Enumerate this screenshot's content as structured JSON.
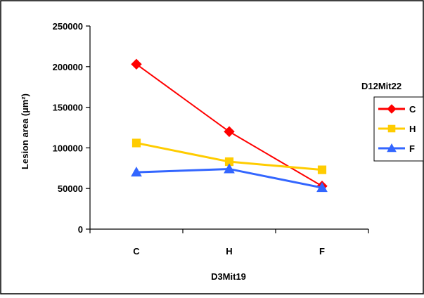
{
  "chart_data": {
    "type": "line",
    "title": "",
    "xlabel": "D3Mit19",
    "ylabel": "Lesion area (µm²)",
    "categories": [
      "C",
      "H",
      "F"
    ],
    "ylim": [
      0,
      250000
    ],
    "yticks": [
      "0",
      "50000",
      "100000",
      "150000",
      "200000",
      "250000"
    ],
    "yticks_values": [
      0,
      50000,
      100000,
      150000,
      200000,
      250000
    ],
    "grid": false,
    "legend": {
      "title": "D12Mit22",
      "placement": "right"
    },
    "series": [
      {
        "name": "C",
        "color": "#ff0000",
        "marker": "diamond-icon",
        "values": [
          203000,
          120000,
          53000
        ]
      },
      {
        "name": "H",
        "color": "#ffcc00",
        "marker": "square-icon",
        "values": [
          106000,
          83000,
          73000
        ]
      },
      {
        "name": "F",
        "color": "#3366ff",
        "marker": "triangle-icon",
        "values": [
          70000,
          74000,
          51000
        ]
      }
    ]
  }
}
